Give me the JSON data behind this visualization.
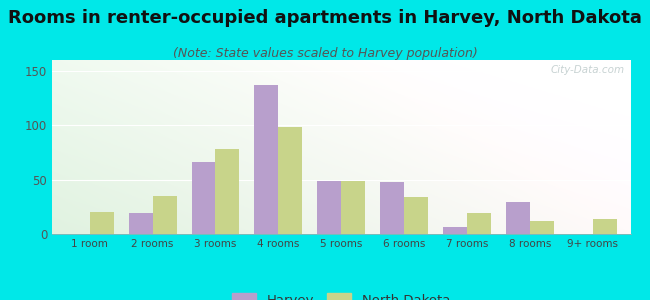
{
  "title": "Rooms in renter-occupied apartments in Harvey, North Dakota",
  "subtitle": "(Note: State values scaled to Harvey population)",
  "categories": [
    "1 room",
    "2 rooms",
    "3 rooms",
    "4 rooms",
    "5 rooms",
    "6 rooms",
    "7 rooms",
    "8 rooms",
    "9+ rooms"
  ],
  "harvey_values": [
    0,
    19,
    66,
    137,
    49,
    48,
    6,
    29,
    0
  ],
  "nd_values": [
    20,
    35,
    78,
    98,
    49,
    34,
    19,
    12,
    14
  ],
  "harvey_color": "#b89fcc",
  "nd_color": "#c8d48a",
  "bar_width": 0.38,
  "ylim": [
    0,
    160
  ],
  "yticks": [
    0,
    50,
    100,
    150
  ],
  "background_outer": "#00e8e8",
  "title_fontsize": 13,
  "subtitle_fontsize": 9,
  "legend_harvey": "Harvey",
  "legend_nd": "North Dakota",
  "watermark": "City-Data.com"
}
